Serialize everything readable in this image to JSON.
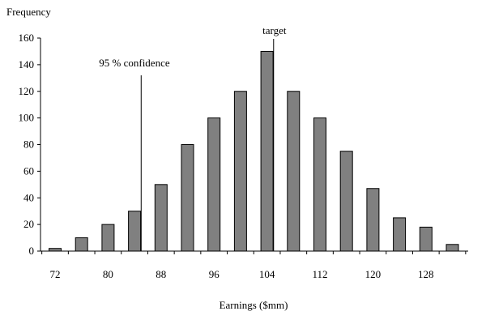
{
  "chart_data": {
    "type": "bar",
    "ylabel": "Frequency",
    "xlabel": "Earnings ($mm)",
    "ylim": [
      0,
      160
    ],
    "yticks": [
      0,
      20,
      40,
      60,
      80,
      100,
      120,
      140,
      160
    ],
    "xticks": [
      72,
      80,
      88,
      96,
      104,
      112,
      120,
      128
    ],
    "bin_width": 4,
    "categories": [
      72,
      76,
      80,
      84,
      88,
      92,
      96,
      100,
      104,
      108,
      112,
      116,
      120,
      124,
      128,
      132
    ],
    "values": [
      2,
      10,
      20,
      30,
      50,
      80,
      100,
      120,
      150,
      120,
      100,
      75,
      47,
      25,
      18,
      5
    ],
    "grid": false,
    "annotations": [
      {
        "label": "95 %  confidence",
        "x": 85
      },
      {
        "label": "target",
        "x": 105
      }
    ]
  }
}
